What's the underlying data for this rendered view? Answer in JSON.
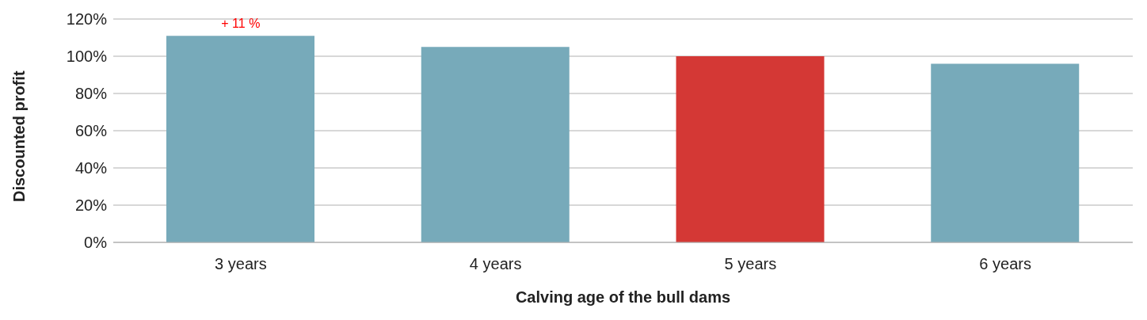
{
  "chart_data": {
    "type": "bar",
    "xlabel": "Calving age of the bull dams",
    "ylabel": "Discounted profit",
    "categories": [
      "3 years",
      "4 years",
      "5 years",
      "6 years"
    ],
    "values": [
      111,
      105,
      100,
      96
    ],
    "colors": [
      "#77aaba",
      "#77aaba",
      "#d43835",
      "#77aaba"
    ],
    "ylim": [
      0,
      120
    ],
    "yticks": [
      {
        "value": 0,
        "label": "0%"
      },
      {
        "value": 20,
        "label": "20%"
      },
      {
        "value": 40,
        "label": "40%"
      },
      {
        "value": 60,
        "label": "60%"
      },
      {
        "value": 80,
        "label": "80%"
      },
      {
        "value": 100,
        "label": "100%"
      },
      {
        "value": 120,
        "label": "120%"
      }
    ],
    "grid": "y",
    "legend": false,
    "annotations": [
      {
        "text": "+ 11 %",
        "x": "3 years",
        "y": 111
      }
    ]
  }
}
